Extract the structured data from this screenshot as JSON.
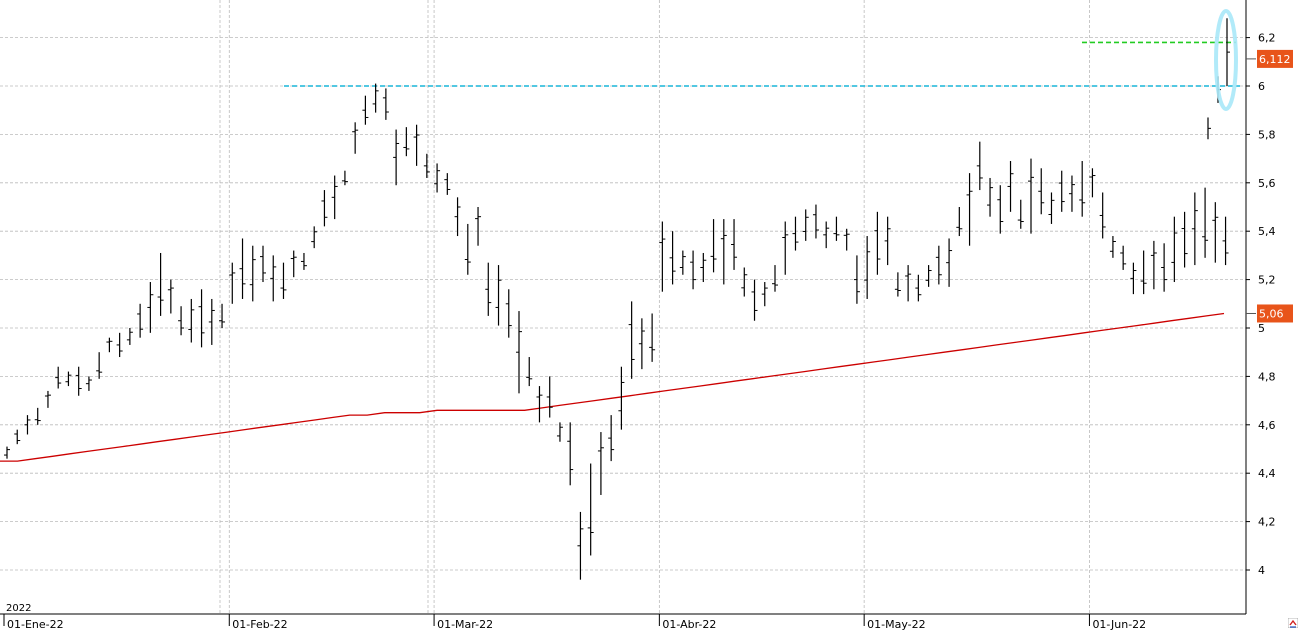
{
  "chart_data": {
    "type": "ohlc",
    "title": "",
    "xlabel": "",
    "ylabel": "",
    "year_label": "2022",
    "x_ticks": [
      "01-Ene-22",
      "01-Feb-22",
      "01-Mar-22",
      "01-Abr-22",
      "01-May-22",
      "01-Jun-22"
    ],
    "x_tick_bar_index": [
      0,
      22,
      42,
      64,
      84,
      106
    ],
    "y_ticks": [
      "4",
      "4,2",
      "4,4",
      "4,6",
      "4,8",
      "5",
      "5,2",
      "5,4",
      "5,6",
      "5,8",
      "6",
      "6,2"
    ],
    "y_tick_values": [
      4.0,
      4.2,
      4.4,
      4.6,
      4.8,
      5.0,
      5.2,
      5.4,
      5.6,
      5.8,
      6.0,
      6.2
    ],
    "ylim": [
      3.83,
      6.33
    ],
    "grid": true,
    "bar_count": 119,
    "bars_hl": [
      [
        4.46,
        4.51
      ],
      [
        4.52,
        4.58
      ],
      [
        4.56,
        4.64
      ],
      [
        4.6,
        4.67
      ],
      [
        4.67,
        4.74
      ],
      [
        4.75,
        4.84
      ],
      [
        4.76,
        4.82
      ],
      [
        4.72,
        4.84
      ],
      [
        4.74,
        4.8
      ],
      [
        4.79,
        4.9
      ],
      [
        4.9,
        4.96
      ],
      [
        4.88,
        4.98
      ],
      [
        4.93,
        5.0
      ],
      [
        4.96,
        5.1
      ],
      [
        4.98,
        5.19
      ],
      [
        5.05,
        5.31
      ],
      [
        5.06,
        5.2
      ],
      [
        4.97,
        5.09
      ],
      [
        4.94,
        5.12
      ],
      [
        4.92,
        5.16
      ],
      [
        4.93,
        5.12
      ],
      [
        5.0,
        5.1
      ],
      [
        5.1,
        5.27
      ],
      [
        5.12,
        5.37
      ],
      [
        5.11,
        5.34
      ],
      [
        5.19,
        5.34
      ],
      [
        5.11,
        5.3
      ],
      [
        5.12,
        5.27
      ],
      [
        5.21,
        5.32
      ],
      [
        5.24,
        5.31
      ],
      [
        5.33,
        5.42
      ],
      [
        5.42,
        5.57
      ],
      [
        5.45,
        5.63
      ],
      [
        5.59,
        5.65
      ],
      [
        5.72,
        5.85
      ],
      [
        5.84,
        5.96
      ],
      [
        5.89,
        6.01
      ],
      [
        5.86,
        5.99
      ],
      [
        5.59,
        5.82
      ],
      [
        5.71,
        5.83
      ],
      [
        5.67,
        5.84
      ],
      [
        5.62,
        5.72
      ],
      [
        5.56,
        5.68
      ],
      [
        5.55,
        5.64
      ],
      [
        5.38,
        5.54
      ],
      [
        5.22,
        5.43
      ],
      [
        5.34,
        5.5
      ],
      [
        5.05,
        5.27
      ],
      [
        5.01,
        5.26
      ],
      [
        4.96,
        5.16
      ],
      [
        4.73,
        5.07
      ],
      [
        4.76,
        4.88
      ],
      [
        4.61,
        4.76
      ],
      [
        4.63,
        4.8
      ],
      [
        4.53,
        4.61
      ],
      [
        4.35,
        4.61
      ],
      [
        3.96,
        4.24
      ],
      [
        4.06,
        4.44
      ],
      [
        4.31,
        4.57
      ],
      [
        4.45,
        4.64
      ],
      [
        4.58,
        4.84
      ],
      [
        4.79,
        5.11
      ],
      [
        4.83,
        5.04
      ],
      [
        4.86,
        5.06
      ],
      [
        5.15,
        5.44
      ],
      [
        5.18,
        5.4
      ],
      [
        5.22,
        5.32
      ],
      [
        5.16,
        5.32
      ],
      [
        5.19,
        5.31
      ],
      [
        5.23,
        5.45
      ],
      [
        5.18,
        5.45
      ],
      [
        5.24,
        5.45
      ],
      [
        5.13,
        5.25
      ],
      [
        5.03,
        5.2
      ],
      [
        5.09,
        5.19
      ],
      [
        5.15,
        5.26
      ],
      [
        5.22,
        5.44
      ],
      [
        5.32,
        5.46
      ],
      [
        5.36,
        5.49
      ],
      [
        5.37,
        5.51
      ],
      [
        5.33,
        5.44
      ],
      [
        5.36,
        5.46
      ],
      [
        5.32,
        5.41
      ],
      [
        5.1,
        5.3
      ],
      [
        5.12,
        5.38
      ],
      [
        5.22,
        5.48
      ],
      [
        5.26,
        5.46
      ],
      [
        5.13,
        5.23
      ],
      [
        5.11,
        5.26
      ],
      [
        5.11,
        5.22
      ],
      [
        5.17,
        5.26
      ],
      [
        5.18,
        5.34
      ],
      [
        5.17,
        5.37
      ],
      [
        5.38,
        5.5
      ],
      [
        5.34,
        5.64
      ],
      [
        5.57,
        5.77
      ],
      [
        5.46,
        5.62
      ],
      [
        5.39,
        5.59
      ],
      [
        5.48,
        5.69
      ],
      [
        5.41,
        5.53
      ],
      [
        5.39,
        5.7
      ],
      [
        5.47,
        5.66
      ],
      [
        5.43,
        5.56
      ],
      [
        5.48,
        5.65
      ],
      [
        5.48,
        5.63
      ],
      [
        5.46,
        5.69
      ],
      [
        5.54,
        5.66
      ],
      [
        5.37,
        5.56
      ],
      [
        5.29,
        5.38
      ],
      [
        5.24,
        5.34
      ],
      [
        5.14,
        5.27
      ],
      [
        5.14,
        5.32
      ],
      [
        5.16,
        5.36
      ],
      [
        5.15,
        5.35
      ],
      [
        5.19,
        5.46
      ],
      [
        5.25,
        5.48
      ],
      [
        5.26,
        5.56
      ],
      [
        5.29,
        5.58
      ],
      [
        5.27,
        5.52
      ],
      [
        5.26,
        5.46
      ]
    ],
    "ma_values": [
      4.45,
      4.45,
      4.46,
      4.47,
      4.48,
      4.49,
      4.5,
      4.51,
      4.52,
      4.53,
      4.54,
      4.55,
      4.56,
      4.57,
      4.58,
      4.59,
      4.6,
      4.61,
      4.62,
      4.63,
      4.64,
      4.64,
      4.65,
      4.65,
      4.65,
      4.66,
      4.66,
      4.66,
      4.66,
      4.66,
      4.66,
      4.67,
      4.68,
      4.69,
      4.7,
      4.71,
      4.72,
      4.73,
      4.74,
      4.75,
      4.76,
      4.77,
      4.78,
      4.79,
      4.8,
      4.81,
      4.82,
      4.83,
      4.84,
      4.85,
      4.86,
      4.87,
      4.88,
      4.89,
      4.9,
      4.91,
      4.92,
      4.93,
      4.94,
      4.95,
      4.96,
      4.97,
      4.98,
      4.99,
      5.0,
      5.01,
      5.02,
      5.03,
      5.04,
      5.05,
      5.06
    ],
    "ma_color": "#cc0000",
    "bar_color": "#000000",
    "resistance_cyan": {
      "value": 6.0,
      "color": "#19b5d8"
    },
    "resistance_green": {
      "value": 6.18,
      "color": "#22cc22"
    },
    "highlight_ellipse_color": "#a8e8f8",
    "last_price_tag": {
      "label": "6,112",
      "value": 6.112,
      "color": "#e8541a"
    },
    "ma_price_tag": {
      "label": "5,06",
      "value": 5.06,
      "color": "#e8541a"
    }
  }
}
